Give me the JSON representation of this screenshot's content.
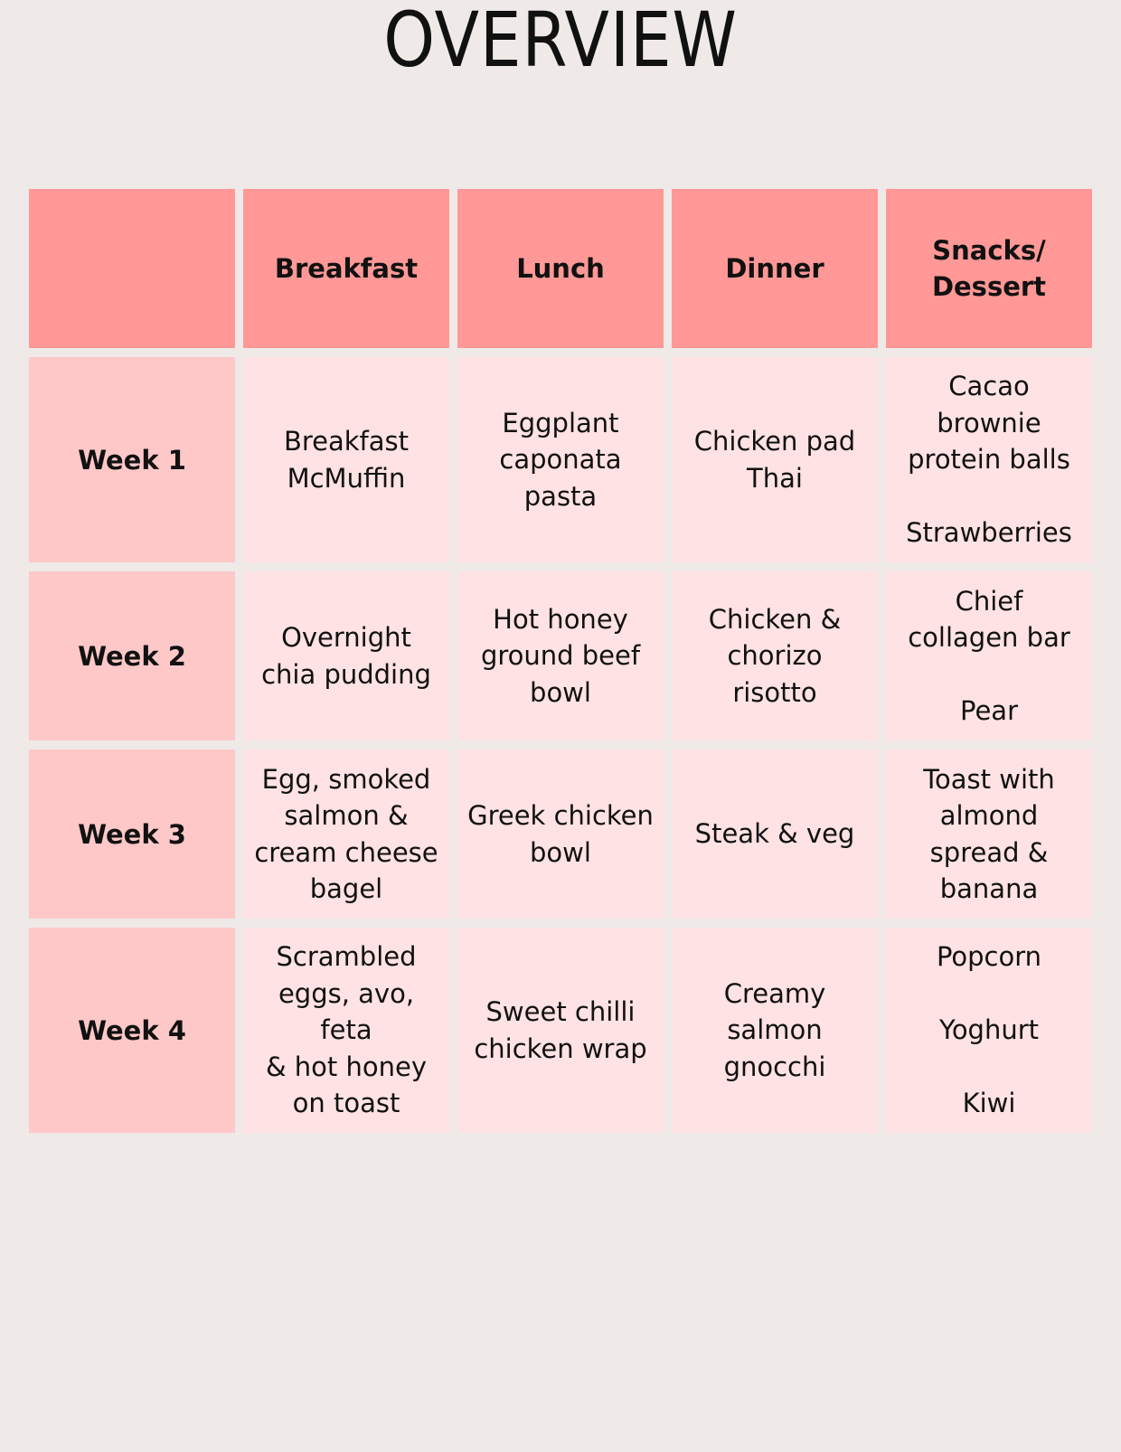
{
  "title": "OVERVIEW",
  "colors": {
    "background": "#efeae8",
    "header_cell": "#ff9896",
    "week_cell": "#ffc8c8",
    "meal_cell": "#ffe2e3",
    "text": "#111111"
  },
  "table": {
    "corner": "",
    "headers": [
      "Breakfast",
      "Lunch",
      "Dinner",
      "Snacks/\nDessert"
    ],
    "rows": [
      {
        "week": "Week 1",
        "meals": [
          "Breakfast\nMcMuffin",
          "Eggplant\ncaponata\npasta",
          "Chicken pad\nThai",
          "Cacao\nbrownie\nprotein balls\n\nStrawberries"
        ]
      },
      {
        "week": "Week 2",
        "meals": [
          "Overnight\nchia pudding",
          "Hot honey\nground beef\nbowl",
          "Chicken &\nchorizo\nrisotto",
          "Chief\ncollagen bar\n\nPear"
        ]
      },
      {
        "week": "Week 3",
        "meals": [
          "Egg, smoked\nsalmon &\ncream cheese\nbagel",
          "Greek chicken\nbowl",
          "Steak & veg",
          "Toast with\nalmond\nspread &\nbanana"
        ]
      },
      {
        "week": "Week 4",
        "meals": [
          "Scrambled\neggs, avo, feta\n& hot honey\non toast",
          "Sweet chilli\nchicken wrap",
          "Creamy\nsalmon\ngnocchi",
          "Popcorn\n\nYoghurt\n\nKiwi"
        ]
      }
    ]
  }
}
